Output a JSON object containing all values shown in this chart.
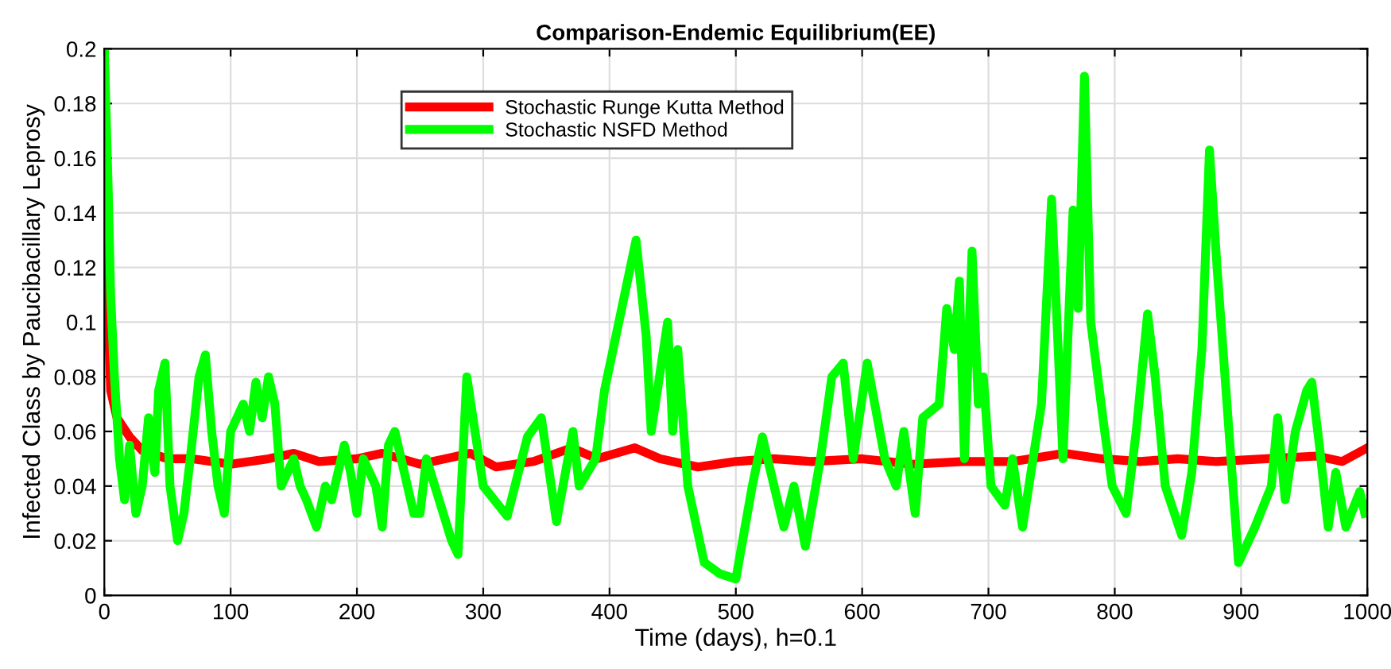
{
  "chart_data": {
    "type": "line",
    "title": "Comparison-Endemic Equilibrium(EE)",
    "xlabel": "Time (days), h=0.1",
    "ylabel": "Infected Class by Paucibacillary Leprosy",
    "xlim": [
      0,
      1000
    ],
    "ylim": [
      0,
      0.2
    ],
    "xticks": [
      0,
      100,
      200,
      300,
      400,
      500,
      600,
      700,
      800,
      900,
      1000
    ],
    "yticks": [
      0,
      0.02,
      0.04,
      0.06,
      0.08,
      0.1,
      0.12,
      0.14,
      0.16,
      0.18,
      0.2
    ],
    "grid": true,
    "legend": "top",
    "line_style": "solid",
    "marker": "none",
    "series": [
      {
        "name": "Stochastic Runge Kutta Method",
        "color": "#ff0000",
        "x": [
          0,
          2,
          5,
          10,
          20,
          30,
          50,
          70,
          100,
          130,
          150,
          170,
          200,
          220,
          250,
          270,
          290,
          310,
          340,
          370,
          390,
          420,
          440,
          470,
          500,
          530,
          560,
          600,
          640,
          680,
          720,
          760,
          790,
          820,
          850,
          880,
          920,
          960,
          980,
          1000
        ],
        "values": [
          0.2,
          0.12,
          0.075,
          0.065,
          0.058,
          0.053,
          0.05,
          0.05,
          0.048,
          0.05,
          0.052,
          0.049,
          0.05,
          0.052,
          0.048,
          0.05,
          0.052,
          0.047,
          0.049,
          0.054,
          0.05,
          0.054,
          0.05,
          0.047,
          0.049,
          0.05,
          0.049,
          0.05,
          0.048,
          0.049,
          0.049,
          0.052,
          0.05,
          0.049,
          0.05,
          0.049,
          0.05,
          0.051,
          0.049,
          0.054
        ]
      },
      {
        "name": "Stochastic NSFD Method",
        "color": "#00ff00",
        "x": [
          0,
          3,
          5,
          8,
          12,
          16,
          20,
          25,
          30,
          35,
          40,
          43,
          48,
          52,
          58,
          63,
          68,
          75,
          80,
          85,
          90,
          95,
          100,
          110,
          115,
          120,
          125,
          130,
          135,
          140,
          145,
          150,
          155,
          160,
          168,
          175,
          180,
          190,
          195,
          200,
          205,
          215,
          220,
          225,
          230,
          240,
          245,
          250,
          255,
          265,
          275,
          280,
          287,
          300,
          319,
          335,
          346,
          358,
          371,
          376,
          389,
          396,
          421,
          429,
          433,
          446,
          450,
          454,
          462,
          475,
          487,
          500,
          513,
          521,
          538,
          546,
          555,
          567,
          576,
          585,
          593,
          604,
          618,
          627,
          633,
          642,
          648,
          661,
          667,
          673,
          677,
          681,
          687,
          692,
          696,
          702,
          713,
          719,
          727,
          742,
          750,
          759,
          767,
          771,
          776,
          781,
          792,
          798,
          809,
          817,
          826,
          832,
          840,
          853,
          861,
          869,
          875,
          881,
          898,
          911,
          924,
          929,
          935,
          943,
          952,
          956,
          962,
          969,
          975,
          983,
          994,
          998
        ],
        "values": [
          0.2,
          0.15,
          0.11,
          0.08,
          0.05,
          0.035,
          0.055,
          0.03,
          0.04,
          0.065,
          0.045,
          0.075,
          0.085,
          0.04,
          0.02,
          0.03,
          0.05,
          0.08,
          0.088,
          0.06,
          0.04,
          0.03,
          0.06,
          0.07,
          0.06,
          0.078,
          0.065,
          0.08,
          0.07,
          0.04,
          0.045,
          0.05,
          0.04,
          0.035,
          0.025,
          0.04,
          0.035,
          0.055,
          0.045,
          0.03,
          0.05,
          0.04,
          0.025,
          0.055,
          0.06,
          0.04,
          0.03,
          0.03,
          0.05,
          0.035,
          0.02,
          0.015,
          0.08,
          0.04,
          0.029,
          0.058,
          0.065,
          0.027,
          0.06,
          0.04,
          0.05,
          0.075,
          0.13,
          0.095,
          0.06,
          0.1,
          0.06,
          0.09,
          0.04,
          0.012,
          0.008,
          0.006,
          0.04,
          0.058,
          0.025,
          0.04,
          0.018,
          0.05,
          0.08,
          0.085,
          0.05,
          0.085,
          0.05,
          0.04,
          0.06,
          0.03,
          0.065,
          0.07,
          0.105,
          0.09,
          0.115,
          0.05,
          0.126,
          0.07,
          0.08,
          0.04,
          0.033,
          0.05,
          0.025,
          0.07,
          0.145,
          0.05,
          0.141,
          0.105,
          0.19,
          0.1,
          0.06,
          0.04,
          0.03,
          0.06,
          0.103,
          0.08,
          0.04,
          0.022,
          0.045,
          0.09,
          0.163,
          0.12,
          0.012,
          0.025,
          0.04,
          0.065,
          0.035,
          0.06,
          0.075,
          0.078,
          0.055,
          0.025,
          0.045,
          0.025,
          0.038,
          0.03
        ]
      }
    ]
  }
}
